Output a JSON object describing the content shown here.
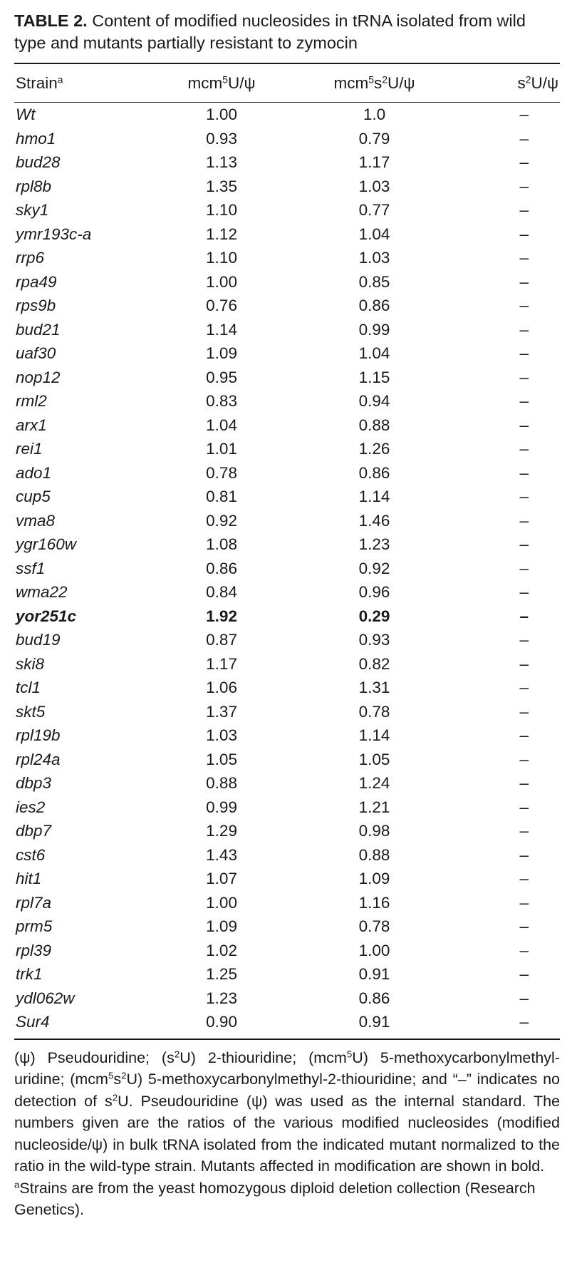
{
  "caption": {
    "label": "TABLE 2.",
    "text": "Content of modified nucleosides in tRNA isolated from wild type and mutants partially resistant to zymocin"
  },
  "headers": {
    "strain": "Strain",
    "strain_sup": "a",
    "col1_a": "mcm",
    "col1_sup": "5",
    "col1_b": "U/ψ",
    "col2_a": "mcm",
    "col2_sup1": "5",
    "col2_b": "s",
    "col2_sup2": "2",
    "col2_c": "U/ψ",
    "col3_a": "s",
    "col3_sup": "2",
    "col3_b": "U/ψ"
  },
  "rows": [
    {
      "strain": "Wt",
      "mcm5U": "1.00",
      "mcm5s2U": "1.0",
      "s2U": "–",
      "bold": false
    },
    {
      "strain": "hmo1",
      "mcm5U": "0.93",
      "mcm5s2U": "0.79",
      "s2U": "–",
      "bold": false
    },
    {
      "strain": "bud28",
      "mcm5U": "1.13",
      "mcm5s2U": "1.17",
      "s2U": "–",
      "bold": false
    },
    {
      "strain": "rpl8b",
      "mcm5U": "1.35",
      "mcm5s2U": "1.03",
      "s2U": "–",
      "bold": false
    },
    {
      "strain": "sky1",
      "mcm5U": "1.10",
      "mcm5s2U": "0.77",
      "s2U": "–",
      "bold": false
    },
    {
      "strain": "ymr193c-a",
      "mcm5U": "1.12",
      "mcm5s2U": "1.04",
      "s2U": "–",
      "bold": false
    },
    {
      "strain": "rrp6",
      "mcm5U": "1.10",
      "mcm5s2U": "1.03",
      "s2U": "–",
      "bold": false
    },
    {
      "strain": "rpa49",
      "mcm5U": "1.00",
      "mcm5s2U": "0.85",
      "s2U": "–",
      "bold": false
    },
    {
      "strain": "rps9b",
      "mcm5U": "0.76",
      "mcm5s2U": "0.86",
      "s2U": "–",
      "bold": false
    },
    {
      "strain": "bud21",
      "mcm5U": "1.14",
      "mcm5s2U": "0.99",
      "s2U": "–",
      "bold": false
    },
    {
      "strain": "uaf30",
      "mcm5U": "1.09",
      "mcm5s2U": "1.04",
      "s2U": "–",
      "bold": false
    },
    {
      "strain": "nop12",
      "mcm5U": "0.95",
      "mcm5s2U": "1.15",
      "s2U": "–",
      "bold": false
    },
    {
      "strain": "rml2",
      "mcm5U": "0.83",
      "mcm5s2U": "0.94",
      "s2U": "–",
      "bold": false
    },
    {
      "strain": "arx1",
      "mcm5U": "1.04",
      "mcm5s2U": "0.88",
      "s2U": "–",
      "bold": false
    },
    {
      "strain": "rei1",
      "mcm5U": "1.01",
      "mcm5s2U": "1.26",
      "s2U": "–",
      "bold": false
    },
    {
      "strain": "ado1",
      "mcm5U": "0.78",
      "mcm5s2U": "0.86",
      "s2U": "–",
      "bold": false
    },
    {
      "strain": "cup5",
      "mcm5U": "0.81",
      "mcm5s2U": "1.14",
      "s2U": "–",
      "bold": false
    },
    {
      "strain": "vma8",
      "mcm5U": "0.92",
      "mcm5s2U": "1.46",
      "s2U": "–",
      "bold": false
    },
    {
      "strain": "ygr160w",
      "mcm5U": "1.08",
      "mcm5s2U": "1.23",
      "s2U": "–",
      "bold": false
    },
    {
      "strain": "ssf1",
      "mcm5U": "0.86",
      "mcm5s2U": "0.92",
      "s2U": "–",
      "bold": false
    },
    {
      "strain": "wma22",
      "mcm5U": "0.84",
      "mcm5s2U": "0.96",
      "s2U": "–",
      "bold": false
    },
    {
      "strain": "yor251c",
      "mcm5U": "1.92",
      "mcm5s2U": "0.29",
      "s2U": "–",
      "bold": true
    },
    {
      "strain": "bud19",
      "mcm5U": "0.87",
      "mcm5s2U": "0.93",
      "s2U": "–",
      "bold": false
    },
    {
      "strain": "ski8",
      "mcm5U": "1.17",
      "mcm5s2U": "0.82",
      "s2U": "–",
      "bold": false
    },
    {
      "strain": "tcl1",
      "mcm5U": "1.06",
      "mcm5s2U": "1.31",
      "s2U": "–",
      "bold": false
    },
    {
      "strain": "skt5",
      "mcm5U": "1.37",
      "mcm5s2U": "0.78",
      "s2U": "–",
      "bold": false
    },
    {
      "strain": "rpl19b",
      "mcm5U": "1.03",
      "mcm5s2U": "1.14",
      "s2U": "–",
      "bold": false
    },
    {
      "strain": "rpl24a",
      "mcm5U": "1.05",
      "mcm5s2U": "1.05",
      "s2U": "–",
      "bold": false
    },
    {
      "strain": "dbp3",
      "mcm5U": "0.88",
      "mcm5s2U": "1.24",
      "s2U": "–",
      "bold": false
    },
    {
      "strain": "ies2",
      "mcm5U": "0.99",
      "mcm5s2U": "1.21",
      "s2U": "–",
      "bold": false
    },
    {
      "strain": "dbp7",
      "mcm5U": "1.29",
      "mcm5s2U": "0.98",
      "s2U": "–",
      "bold": false
    },
    {
      "strain": "cst6",
      "mcm5U": "1.43",
      "mcm5s2U": "0.88",
      "s2U": "–",
      "bold": false
    },
    {
      "strain": "hit1",
      "mcm5U": "1.07",
      "mcm5s2U": "1.09",
      "s2U": "–",
      "bold": false
    },
    {
      "strain": "rpl7a",
      "mcm5U": "1.00",
      "mcm5s2U": "1.16",
      "s2U": "–",
      "bold": false
    },
    {
      "strain": "prm5",
      "mcm5U": "1.09",
      "mcm5s2U": "0.78",
      "s2U": "–",
      "bold": false
    },
    {
      "strain": "rpl39",
      "mcm5U": "1.02",
      "mcm5s2U": "1.00",
      "s2U": "–",
      "bold": false
    },
    {
      "strain": "trk1",
      "mcm5U": "1.25",
      "mcm5s2U": "0.91",
      "s2U": "–",
      "bold": false
    },
    {
      "strain": "ydl062w",
      "mcm5U": "1.23",
      "mcm5s2U": "0.86",
      "s2U": "–",
      "bold": false
    },
    {
      "strain": "Sur4",
      "mcm5U": "0.90",
      "mcm5s2U": "0.91",
      "s2U": "–",
      "bold": false
    }
  ],
  "footnote": {
    "p1": "(ψ) Pseudouridine; (s",
    "p1_sup": "2",
    "p2": "U) 2-thiouridine; (mcm",
    "p2_sup": "5",
    "p3": "U) 5-methoxycarbonylmethyl-uridine; (mcm",
    "p3_sup1": "5",
    "p3b": "s",
    "p3_sup2": "2",
    "p4": "U) 5-methoxycarbonylmethyl-2-thiouridine; and “–” indicates no detection of s",
    "p4_sup": "2",
    "p5": "U. Pseudouridine (ψ) was used as the internal standard. The numbers given are the ratios of the various modified nucleosides (modified nucleoside/ψ) in bulk tRNA isolated from the indicated mutant normalized to the ratio in the wild-type strain. Mutants affected in modification are shown in bold.",
    "a_sup": "a",
    "a_text": "Strains are from the yeast homozygous diploid deletion collection (Research Genetics)."
  }
}
